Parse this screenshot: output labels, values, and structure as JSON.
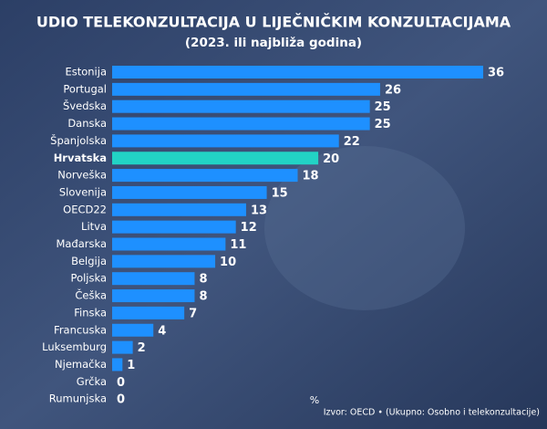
{
  "chart_data": {
    "type": "bar",
    "orientation": "horizontal",
    "title": "UDIO TELEKONZULTACIJA U LIJEČNIČKIM KONZULTACIJAMA",
    "subtitle": "(2023. ili najbliža godina)",
    "categories": [
      "Estonija",
      "Portugal",
      "Švedska",
      "Danska",
      "Španjolska",
      "Hrvatska",
      "Norveška",
      "Slovenija",
      "OECD22",
      "Litva",
      "Mađarska",
      "Belgija",
      "Poljska",
      "Češka",
      "Finska",
      "Francuska",
      "Luksemburg",
      "Njemačka",
      "Grčka",
      "Rumunjska"
    ],
    "values": [
      36,
      26,
      25,
      25,
      22,
      20,
      18,
      15,
      13,
      12,
      11,
      10,
      8,
      8,
      7,
      4,
      2,
      1,
      0,
      0
    ],
    "colors": [
      "#1e90ff",
      "#1e90ff",
      "#1e90ff",
      "#1e90ff",
      "#1e90ff",
      "#22d3c5",
      "#1e90ff",
      "#1e90ff",
      "#1e90ff",
      "#1e90ff",
      "#1e90ff",
      "#1e90ff",
      "#1e90ff",
      "#1e90ff",
      "#1e90ff",
      "#1e90ff",
      "#1e90ff",
      "#1e90ff",
      "#1e90ff",
      "#1e90ff"
    ],
    "unit": "%",
    "source": "Izvor: OECD • (Ukupno: Osobno i telekonzultacije)"
  }
}
